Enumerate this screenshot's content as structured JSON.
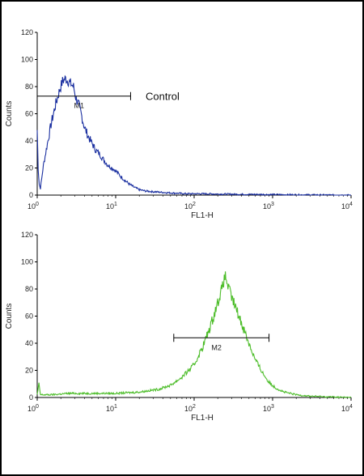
{
  "chart_data": [
    {
      "type": "line",
      "xscale": "log",
      "xlim": [
        1,
        10000
      ],
      "ylim": [
        0,
        120
      ],
      "ylabel": "Counts",
      "xlabel": "FL1-H",
      "x_tick_labels": [
        "10^0",
        "10^1",
        "10^2",
        "10^3",
        "10^4"
      ],
      "y_tick_labels": [
        "0",
        "20",
        "40",
        "60",
        "80",
        "100",
        "120"
      ],
      "series": [
        {
          "color": "#1a2fa0",
          "x": [
            1.0,
            1.03,
            1.06,
            1.1,
            1.2,
            1.35,
            1.5,
            1.7,
            1.9,
            2.1,
            2.3,
            2.5,
            2.7,
            2.9,
            3.1,
            3.4,
            3.7,
            4.0,
            4.5,
            5.0,
            5.6,
            6.3,
            7.0,
            8.0,
            9.0,
            10.0,
            11.5,
            13.0,
            15.0,
            17.0,
            20.0,
            24.0,
            30.0,
            40.0,
            55.0,
            80.0,
            120.0,
            200.0,
            350.0,
            700.0,
            1500.0,
            3000.0,
            10000.0
          ],
          "y": [
            48,
            20,
            8,
            5,
            22,
            38,
            52,
            66,
            76,
            84,
            86,
            84,
            82,
            80,
            72,
            66,
            58,
            50,
            43,
            38,
            33,
            30,
            26,
            22,
            20,
            18,
            14,
            11,
            8,
            6,
            4,
            3,
            2.5,
            2,
            1.5,
            1,
            1,
            0.8,
            0.6,
            0.5,
            0.3,
            0.2,
            0
          ]
        }
      ],
      "markers": [
        {
          "label": "M1",
          "x_start": 1.0,
          "x_end": 15.5,
          "y": 73
        }
      ],
      "annotation": "Control"
    },
    {
      "type": "line",
      "xscale": "log",
      "xlim": [
        1,
        10000
      ],
      "ylim": [
        0,
        120
      ],
      "ylabel": "Counts",
      "xlabel": "FL1-H",
      "x_tick_labels": [
        "10^0",
        "10^1",
        "10^2",
        "10^3",
        "10^4"
      ],
      "y_tick_labels": [
        "0",
        "20",
        "40",
        "60",
        "80",
        "100",
        "120"
      ],
      "series": [
        {
          "color": "#4dbd2a",
          "x": [
            1.0,
            1.05,
            1.1,
            1.5,
            2.5,
            5.0,
            10.0,
            20.0,
            35.0,
            50.0,
            70.0,
            100.0,
            130.0,
            160.0,
            190.0,
            210.0,
            230.0,
            250.0,
            270.0,
            300.0,
            350.0,
            420.0,
            500.0,
            600.0,
            750.0,
            900.0,
            1100.0,
            1400.0,
            2000.0,
            3000.0,
            5000.0,
            10000.0
          ],
          "y": [
            2,
            10,
            2,
            2,
            3,
            3,
            3,
            4,
            6,
            9,
            15,
            24,
            38,
            52,
            66,
            74,
            82,
            90,
            82,
            74,
            64,
            52,
            40,
            28,
            18,
            11,
            7,
            4,
            2,
            1,
            0.5,
            0
          ]
        }
      ],
      "markers": [
        {
          "label": "M2",
          "x_start": 55.0,
          "x_end": 900.0,
          "y": 44
        }
      ]
    }
  ]
}
